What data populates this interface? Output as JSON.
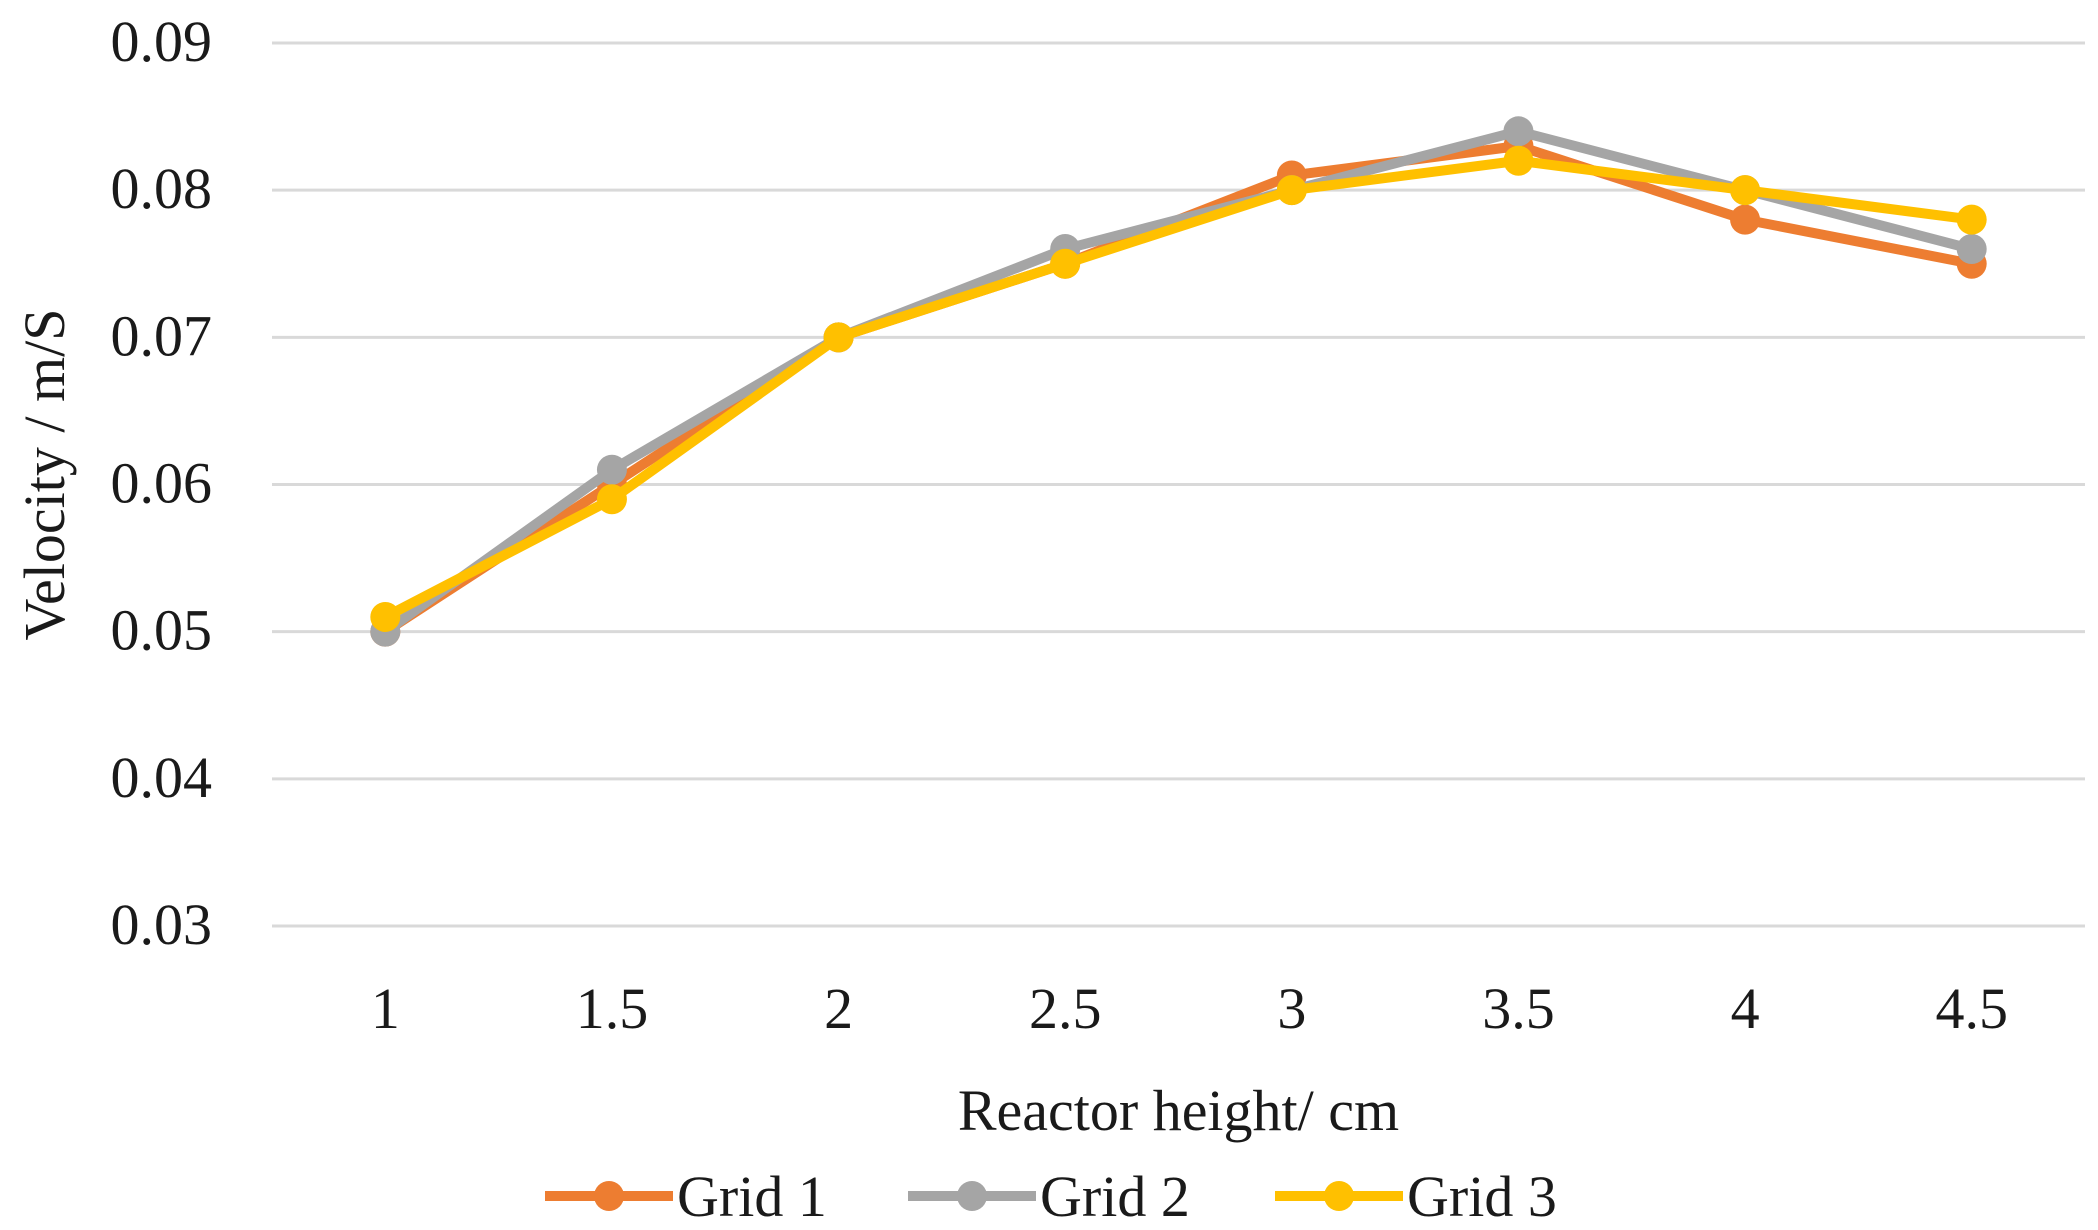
{
  "chart_data": {
    "type": "line",
    "title": "",
    "xlabel": "Reactor height/ cm",
    "ylabel": "Velocity / m/S",
    "categories": [
      "1",
      "1.5",
      "2",
      "2.5",
      "3",
      "3.5",
      "4",
      "4.5"
    ],
    "y_ticks": [
      "0.09",
      "0.08",
      "0.07",
      "0.06",
      "0.05",
      "0.04",
      "0.03"
    ],
    "ylim": [
      0.03,
      0.09
    ],
    "grid": true,
    "legend_position": "bottom",
    "series": [
      {
        "name": "Grid 1",
        "color": "#ED7D31",
        "values": [
          0.05,
          0.06,
          0.07,
          0.075,
          0.081,
          0.083,
          0.078,
          0.075
        ]
      },
      {
        "name": "Grid 2",
        "color": "#A5A5A5",
        "values": [
          0.05,
          0.061,
          0.07,
          0.076,
          0.08,
          0.084,
          0.08,
          0.076
        ]
      },
      {
        "name": "Grid 3",
        "color": "#FFC000",
        "values": [
          0.051,
          0.059,
          0.07,
          0.075,
          0.08,
          0.082,
          0.08,
          0.078
        ]
      }
    ]
  }
}
